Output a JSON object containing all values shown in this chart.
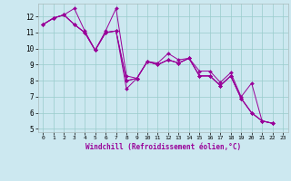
{
  "title": "",
  "xlabel": "Windchill (Refroidissement éolien,°C)",
  "ylabel": "",
  "background_color": "#cce8f0",
  "grid_color": "#99cccc",
  "line_color": "#990099",
  "xlim": [
    -0.5,
    23.5
  ],
  "ylim": [
    4.8,
    12.8
  ],
  "yticks": [
    5,
    6,
    7,
    8,
    9,
    10,
    11,
    12
  ],
  "xticks": [
    0,
    1,
    2,
    3,
    4,
    5,
    6,
    7,
    8,
    9,
    10,
    11,
    12,
    13,
    14,
    15,
    16,
    17,
    18,
    19,
    20,
    21,
    22,
    23
  ],
  "series": [
    [
      11.5,
      11.9,
      12.1,
      12.5,
      11.1,
      9.9,
      11.1,
      12.5,
      8.3,
      8.15,
      9.2,
      9.1,
      9.7,
      9.3,
      9.4,
      8.6,
      8.6,
      7.9,
      8.5,
      7.0,
      7.85,
      5.5,
      5.35
    ],
    [
      11.5,
      11.9,
      12.1,
      11.5,
      11.0,
      9.9,
      11.0,
      11.1,
      7.5,
      8.15,
      9.2,
      9.0,
      9.3,
      9.1,
      9.4,
      8.3,
      8.3,
      7.7,
      8.3,
      6.9,
      6.0,
      5.5,
      5.35
    ],
    [
      11.5,
      11.9,
      12.1,
      11.5,
      11.0,
      9.9,
      11.0,
      11.1,
      8.0,
      8.15,
      9.2,
      9.0,
      9.3,
      9.1,
      9.4,
      8.3,
      8.3,
      7.7,
      8.3,
      6.9,
      6.0,
      5.5,
      5.35
    ],
    [
      11.5,
      11.9,
      12.1,
      11.5,
      11.0,
      9.9,
      11.0,
      11.1,
      8.0,
      8.15,
      9.2,
      9.0,
      9.3,
      9.1,
      9.4,
      8.3,
      8.3,
      7.7,
      8.3,
      6.9,
      6.0,
      5.5,
      5.35
    ]
  ]
}
